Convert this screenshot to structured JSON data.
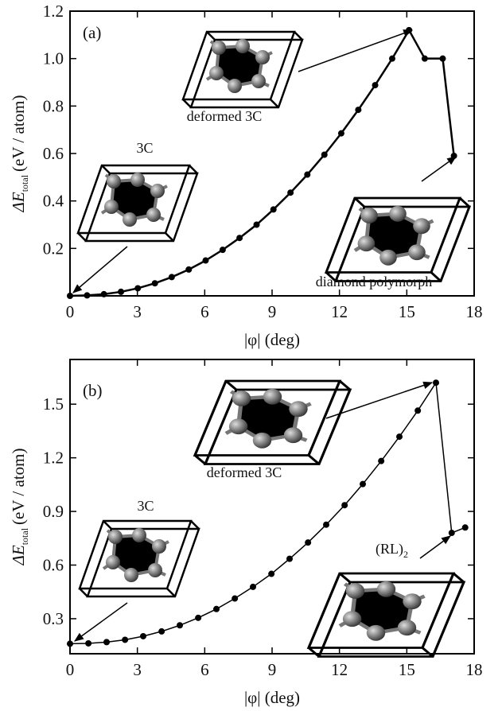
{
  "chart_data": [
    {
      "type": "line",
      "panel_label": "(a)",
      "xlabel": "|φ| (deg)",
      "ylabel": {
        "symbol": "ΔE",
        "subscript": "total",
        "unit": "(eV / atom)"
      },
      "x": [
        0,
        0.76,
        1.51,
        2.27,
        3.02,
        3.78,
        4.53,
        5.29,
        6.04,
        6.8,
        7.55,
        8.31,
        9.06,
        9.82,
        10.57,
        11.33,
        12.08,
        12.84,
        13.59,
        14.35,
        15.1,
        15.8,
        16.6,
        17.1
      ],
      "series": [
        {
          "color": "#000000",
          "values": [
            0,
            0.002,
            0.007,
            0.017,
            0.032,
            0.053,
            0.079,
            0.111,
            0.149,
            0.194,
            0.244,
            0.3,
            0.364,
            0.435,
            0.511,
            0.595,
            0.685,
            0.784,
            0.888,
            1.0,
            1.12,
            1.0,
            1.0,
            0.59
          ]
        }
      ],
      "xlim": [
        0,
        18
      ],
      "xticks": [
        0,
        3,
        6,
        9,
        12,
        15,
        18
      ],
      "ylim": [
        0,
        1.2
      ],
      "yticks": [
        0.2,
        0.4,
        0.6,
        0.8,
        {
          "value": 1,
          "label": "1.0"
        },
        1.2
      ],
      "annotations": [
        "deformed 3C",
        "3C",
        "diamond polymorph"
      ]
    },
    {
      "type": "line",
      "panel_label": "(b)",
      "xlabel": "|φ| (deg)",
      "ylabel": {
        "symbol": "ΔE",
        "subscript": "total",
        "unit": "(eV / atom)"
      },
      "x": [
        0,
        0.82,
        1.63,
        2.45,
        3.26,
        4.08,
        4.89,
        5.71,
        6.52,
        7.34,
        8.15,
        8.97,
        9.78,
        10.6,
        11.41,
        12.23,
        13.04,
        13.86,
        14.67,
        15.49,
        16.3,
        17.0,
        17.6
      ],
      "series": [
        {
          "color": "#000000",
          "values": [
            0.16,
            0.162,
            0.169,
            0.182,
            0.202,
            0.229,
            0.263,
            0.305,
            0.354,
            0.413,
            0.478,
            0.551,
            0.635,
            0.726,
            0.826,
            0.935,
            1.053,
            1.182,
            1.318,
            1.464,
            1.62,
            0.78,
            0.81
          ]
        }
      ],
      "xlim": [
        0,
        18
      ],
      "xticks": [
        0,
        3,
        6,
        9,
        12,
        15,
        18
      ],
      "ylim": [
        0.104,
        1.75
      ],
      "yticks": [
        0.3,
        0.6,
        0.9,
        1.2,
        1.5
      ],
      "annotations": [
        "deformed 3C",
        "3C",
        {
          "main": "(RL)",
          "subscript": "2"
        }
      ]
    }
  ]
}
